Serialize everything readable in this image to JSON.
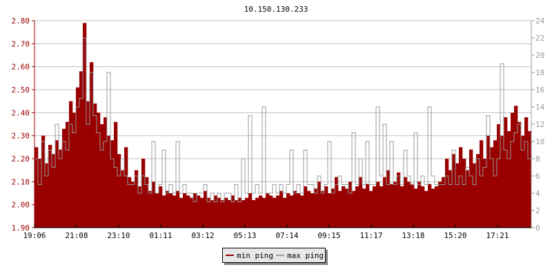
{
  "chart_data": {
    "type": "bar",
    "title": "10.150.130.233",
    "x_tick_labels": [
      "19:06",
      "21:08",
      "23:10",
      "01:11",
      "03:12",
      "05:13",
      "07:14",
      "09:15",
      "11:17",
      "13:18",
      "15:20",
      "17:21"
    ],
    "y_left": {
      "range": [
        1.9,
        2.8
      ],
      "ticks": [
        "1.90",
        "2.00",
        "2.10",
        "2.20",
        "2.30",
        "2.40",
        "2.50",
        "2.60",
        "2.70",
        "2.80"
      ],
      "color": "#990000"
    },
    "y_right": {
      "range": [
        0,
        24
      ],
      "ticks": [
        "0",
        "2",
        "4",
        "6",
        "8",
        "10",
        "12",
        "14",
        "16",
        "18",
        "20",
        "22",
        "24"
      ],
      "color": "#999999"
    },
    "grid": true,
    "legend_position": "bottom-center",
    "sample_interval_minutes": 10,
    "series": [
      {
        "name": "min ping",
        "axis": "left",
        "color": "#990000",
        "style": "bar",
        "values": [
          2.25,
          2.2,
          2.3,
          2.18,
          2.26,
          2.22,
          2.28,
          2.24,
          2.33,
          2.36,
          2.45,
          2.4,
          2.51,
          2.58,
          2.79,
          2.45,
          2.62,
          2.44,
          2.4,
          2.35,
          2.38,
          2.3,
          2.28,
          2.36,
          2.22,
          2.15,
          2.25,
          2.12,
          2.1,
          2.15,
          2.08,
          2.2,
          2.12,
          2.06,
          2.1,
          2.05,
          2.08,
          2.04,
          2.06,
          2.05,
          2.04,
          2.06,
          2.03,
          2.05,
          2.04,
          2.03,
          2.05,
          2.04,
          2.03,
          2.06,
          2.03,
          2.02,
          2.04,
          2.03,
          2.02,
          2.03,
          2.02,
          2.04,
          2.02,
          2.03,
          2.02,
          2.03,
          2.05,
          2.02,
          2.03,
          2.04,
          2.03,
          2.05,
          2.04,
          2.03,
          2.04,
          2.06,
          2.03,
          2.05,
          2.04,
          2.06,
          2.05,
          2.04,
          2.08,
          2.06,
          2.05,
          2.07,
          2.1,
          2.06,
          2.08,
          2.05,
          2.07,
          2.12,
          2.06,
          2.08,
          2.07,
          2.1,
          2.06,
          2.08,
          2.12,
          2.07,
          2.09,
          2.06,
          2.08,
          2.1,
          2.08,
          2.12,
          2.15,
          2.09,
          2.1,
          2.14,
          2.08,
          2.12,
          2.1,
          2.09,
          2.07,
          2.1,
          2.08,
          2.06,
          2.09,
          2.07,
          2.08,
          2.1,
          2.12,
          2.2,
          2.15,
          2.22,
          2.18,
          2.25,
          2.2,
          2.15,
          2.24,
          2.18,
          2.22,
          2.28,
          2.2,
          2.3,
          2.25,
          2.28,
          2.35,
          2.3,
          2.38,
          2.32,
          2.4,
          2.43,
          2.36,
          2.3,
          2.38,
          2.32
        ]
      },
      {
        "name": "max ping",
        "axis": "right",
        "color": "#999999",
        "style": "line",
        "values": [
          8,
          5,
          10,
          6,
          9,
          7,
          12,
          8,
          10,
          9,
          12,
          11,
          14,
          15,
          22,
          12,
          18,
          13,
          11,
          9,
          10,
          18,
          8,
          7,
          6,
          8,
          6,
          5,
          5,
          6,
          4,
          6,
          5,
          4,
          10,
          4,
          5,
          9,
          4,
          5,
          4,
          10,
          4,
          5,
          4,
          4,
          3,
          4,
          4,
          5,
          3,
          4,
          3,
          4,
          3,
          4,
          4,
          3,
          5,
          3,
          8,
          4,
          13,
          4,
          5,
          4,
          14,
          4,
          4,
          5,
          4,
          5,
          4,
          5,
          9,
          4,
          5,
          4,
          9,
          5,
          5,
          4,
          6,
          4,
          5,
          10,
          4,
          5,
          6,
          5,
          5,
          4,
          11,
          5,
          8,
          5,
          10,
          5,
          5,
          14,
          6,
          12,
          5,
          10,
          5,
          6,
          5,
          9,
          6,
          5,
          11,
          5,
          6,
          5,
          14,
          6,
          5,
          5,
          5,
          6,
          5,
          9,
          5,
          6,
          5,
          7,
          6,
          5,
          8,
          6,
          7,
          13,
          8,
          6,
          8,
          19,
          9,
          8,
          10,
          11,
          12,
          9,
          10,
          8
        ]
      }
    ]
  }
}
